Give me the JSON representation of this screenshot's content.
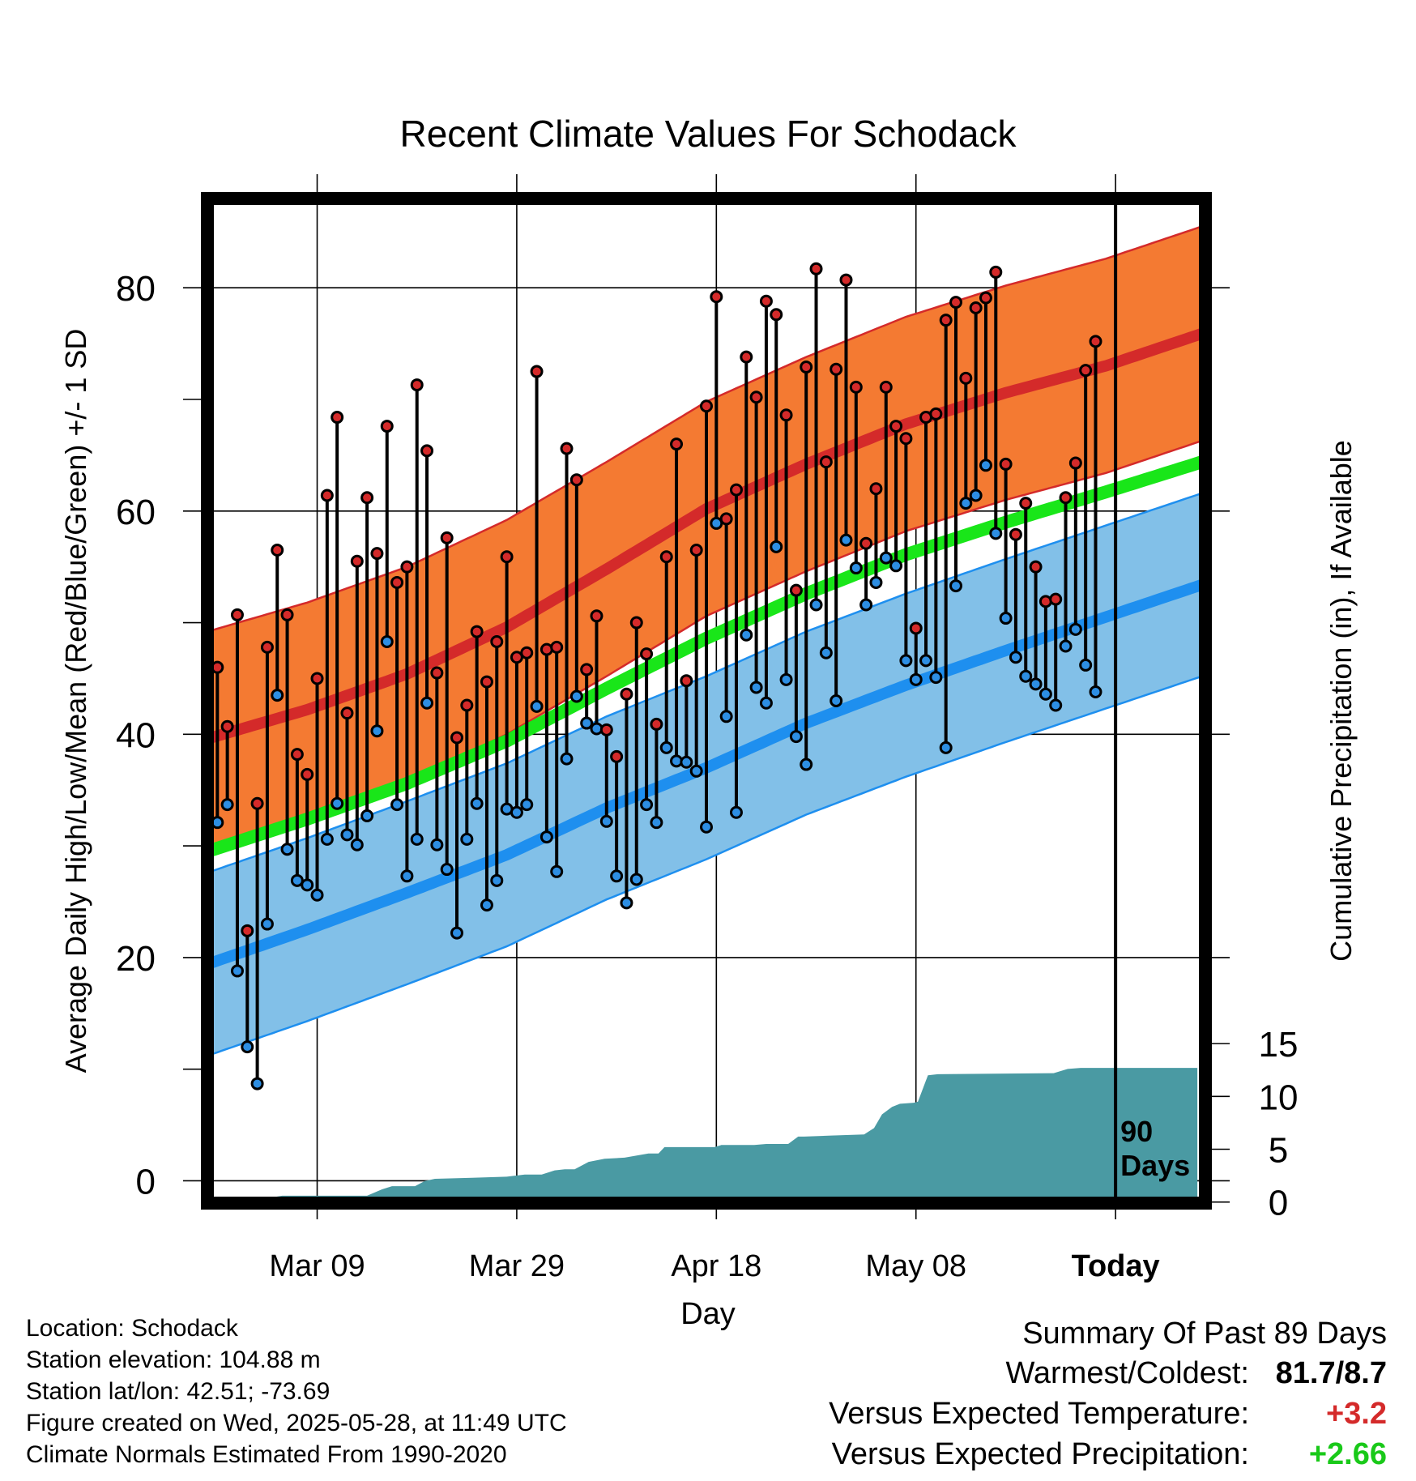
{
  "chart_data": {
    "type": "line",
    "title": "Recent Climate Values For Schodack",
    "xlabel": "Day",
    "ylabel": "Average Daily High/Low/Mean (Red/Blue/Green) +/- 1 SD",
    "ylabel_right": "Cumulative Precipitation (in), If Available",
    "x_tick_labels": [
      "Mar 09",
      "Mar 29",
      "Apr 18",
      "May 08",
      "Today"
    ],
    "x_tick_day_index": [
      10,
      30,
      50,
      70,
      90
    ],
    "x_range_day_index": [
      -1,
      99
    ],
    "ylim": [
      -2,
      88
    ],
    "y_ticks": [
      0,
      20,
      40,
      60,
      80
    ],
    "y2lim": [
      -0.1,
      95
    ],
    "y2_ticks": [
      0,
      5,
      10,
      15
    ],
    "today_marker_day_index": 90,
    "today_label": "90\nDays",
    "grid": true,
    "colors": {
      "high_band": "#f47a32",
      "high_mean": "#d42a2a",
      "low_band": "#82c0e8",
      "low_mean": "#1e8fef",
      "mean_line": "#19e619",
      "precip": "#4a9aa3",
      "high_point": "#d42a2a",
      "low_point": "#2d8ee3"
    },
    "normals": {
      "high": [
        [
          -1,
          39.6
        ],
        [
          9,
          42.2
        ],
        [
          19,
          45.4
        ],
        [
          29,
          49.6
        ],
        [
          39,
          54.8
        ],
        [
          49,
          60.2
        ],
        [
          59,
          64.2
        ],
        [
          69,
          67.8
        ],
        [
          79,
          70.6
        ],
        [
          89,
          73.0
        ],
        [
          99,
          76.0
        ]
      ],
      "high_sd": 9.6,
      "low": [
        [
          -1,
          19.4
        ],
        [
          9,
          22.5
        ],
        [
          19,
          25.8
        ],
        [
          29,
          29.2
        ],
        [
          39,
          33.4
        ],
        [
          49,
          37.0
        ],
        [
          59,
          41.0
        ],
        [
          69,
          44.4
        ],
        [
          79,
          47.5
        ],
        [
          89,
          50.5
        ],
        [
          99,
          53.5
        ]
      ],
      "low_sd": 8.2,
      "mean": [
        [
          -1,
          29.5
        ],
        [
          9,
          32.4
        ],
        [
          19,
          35.6
        ],
        [
          29,
          39.4
        ],
        [
          39,
          44.1
        ],
        [
          49,
          48.6
        ],
        [
          59,
          52.6
        ],
        [
          69,
          56.1
        ],
        [
          79,
          59.0
        ],
        [
          89,
          61.7
        ],
        [
          99,
          64.5
        ]
      ]
    },
    "daily_high": [
      46.0,
      40.7,
      50.7,
      22.4,
      33.8,
      47.8,
      56.5,
      50.7,
      38.2,
      36.4,
      45.0,
      61.4,
      68.4,
      41.9,
      55.5,
      61.2,
      56.2,
      67.6,
      53.6,
      55.0,
      71.3,
      65.4,
      45.5,
      57.6,
      39.7,
      42.6,
      49.2,
      44.7,
      48.3,
      55.9,
      46.9,
      47.3,
      72.5,
      47.6,
      47.8,
      65.6,
      62.8,
      45.8,
      50.6,
      40.4,
      38.0,
      43.6,
      50.0,
      47.2,
      40.9,
      55.9,
      66.0,
      44.8,
      56.5,
      69.4,
      79.2,
      59.3,
      61.9,
      73.8,
      70.2,
      78.8,
      77.6,
      68.6,
      52.9,
      72.9,
      81.7,
      64.4,
      72.7,
      80.7,
      71.1,
      57.1,
      62.0,
      71.1,
      67.6,
      66.5,
      49.5,
      68.4,
      68.7,
      77.1,
      78.7,
      71.9,
      78.2,
      79.1,
      81.4,
      64.2,
      57.9,
      60.7,
      55.0,
      51.9,
      52.1,
      61.2,
      64.3,
      72.6,
      75.2
    ],
    "daily_low": [
      32.1,
      33.7,
      18.8,
      12.0,
      8.7,
      23.0,
      43.5,
      29.7,
      26.9,
      26.5,
      25.6,
      30.6,
      33.8,
      31.0,
      30.1,
      32.7,
      40.3,
      48.3,
      33.7,
      27.3,
      30.6,
      42.8,
      30.1,
      27.9,
      22.2,
      30.6,
      33.8,
      24.7,
      26.9,
      33.3,
      33.0,
      33.7,
      42.5,
      30.8,
      27.7,
      37.8,
      43.4,
      41.0,
      40.5,
      32.2,
      27.3,
      24.9,
      27.0,
      33.7,
      32.1,
      38.8,
      37.6,
      37.5,
      36.7,
      31.7,
      58.9,
      41.6,
      33.0,
      48.9,
      44.2,
      42.8,
      56.8,
      44.9,
      39.8,
      37.3,
      51.6,
      47.3,
      43.0,
      57.4,
      54.9,
      51.6,
      53.6,
      55.8,
      55.1,
      46.6,
      44.9,
      46.6,
      45.1,
      38.8,
      53.3,
      60.7,
      61.4,
      64.1,
      58.0,
      50.4,
      46.9,
      45.2,
      44.5,
      43.6,
      42.6,
      47.9,
      49.4,
      46.2,
      43.8
    ],
    "cumulative_precip": [
      [
        -1,
        0
      ],
      [
        5,
        0
      ],
      [
        5.8,
        0.5
      ],
      [
        6.5,
        0.6
      ],
      [
        15,
        0.6
      ],
      [
        16.5,
        1.2
      ],
      [
        17.5,
        1.5
      ],
      [
        19.8,
        1.5
      ],
      [
        20.8,
        2.0
      ],
      [
        21.8,
        2.2
      ],
      [
        25.5,
        2.3
      ],
      [
        29,
        2.4
      ],
      [
        30.8,
        2.6
      ],
      [
        32.5,
        2.6
      ],
      [
        33.8,
        3.0
      ],
      [
        34.8,
        3.1
      ],
      [
        35.8,
        3.1
      ],
      [
        37.2,
        3.8
      ],
      [
        38.8,
        4.1
      ],
      [
        40.8,
        4.2
      ],
      [
        43.2,
        4.6
      ],
      [
        44.2,
        4.6
      ],
      [
        44.8,
        5.2
      ],
      [
        49.8,
        5.2
      ],
      [
        50.5,
        5.4
      ],
      [
        53.8,
        5.4
      ],
      [
        55,
        5.5
      ],
      [
        57.2,
        5.5
      ],
      [
        58.2,
        6.2
      ],
      [
        58.8,
        6.2
      ],
      [
        61.5,
        6.3
      ],
      [
        64.8,
        6.4
      ],
      [
        65.8,
        7.0
      ],
      [
        66.6,
        8.3
      ],
      [
        67.6,
        9.0
      ],
      [
        68.4,
        9.3
      ],
      [
        69.8,
        9.4
      ],
      [
        70.2,
        9.5
      ],
      [
        71.2,
        12.0
      ],
      [
        72.2,
        12.1
      ],
      [
        83.8,
        12.2
      ],
      [
        85.2,
        12.6
      ],
      [
        86.5,
        12.7
      ],
      [
        98.2,
        12.7
      ]
    ]
  },
  "footer": {
    "location": "Location: Schodack",
    "elevation": "Station elevation: 104.88 m",
    "latlon": "Station lat/lon: 42.51; -73.69",
    "created": "Figure created on Wed, 2025-05-28, at 11:49 UTC",
    "normals_note": "Climate Normals Estimated From 1990-2020"
  },
  "summary": {
    "title": "Summary Of Past 89 Days",
    "warm_cold_label": "Warmest/Coldest:",
    "warm_cold_value": "81.7/8.7",
    "temp_label": "Versus Expected Temperature:",
    "temp_value": "+3.2",
    "temp_color": "#d42a2a",
    "precip_label": "Versus Expected Precipitation:",
    "precip_value": "+2.66",
    "precip_color": "#19c919"
  }
}
